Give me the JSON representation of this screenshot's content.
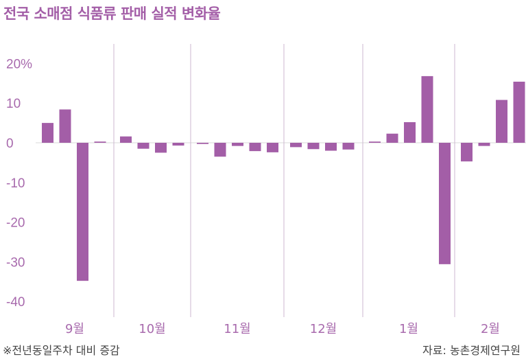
{
  "title": "전국 소매점 식품류 판매 실적 변화율",
  "footnote": "※전년동일주차 대비 증감",
  "source": "자료: 농촌경제연구원",
  "colors": {
    "bar": "#a35ea7",
    "tick_text": "#a86aad",
    "grid": "#cdb7d0",
    "zero": "#d9d9d9"
  },
  "chart_data": {
    "type": "bar",
    "title": "전국 소매점 식품류 판매 실적 변화율",
    "y_unit": "%",
    "ylim": [
      -42,
      24
    ],
    "y_ticks": [
      {
        "value": 20,
        "label": "20%"
      },
      {
        "value": 10,
        "label": "10"
      },
      {
        "value": 0,
        "label": "0"
      },
      {
        "value": -10,
        "label": "-10"
      },
      {
        "value": -20,
        "label": "-20"
      },
      {
        "value": -30,
        "label": "-30"
      },
      {
        "value": -40,
        "label": "-40"
      }
    ],
    "grid": "vertical month separators",
    "groups": [
      {
        "label": "9월",
        "values": [
          5.0,
          8.4,
          -34.8,
          0.3
        ]
      },
      {
        "label": "10월",
        "values": [
          1.6,
          -1.5,
          -2.5,
          -0.7
        ]
      },
      {
        "label": "11월",
        "values": [
          -0.3,
          -3.5,
          -0.8,
          -2.1,
          -2.4
        ]
      },
      {
        "label": "12월",
        "values": [
          -1.1,
          -1.6,
          -2.0,
          -1.7
        ]
      },
      {
        "label": "1월",
        "values": [
          0.3,
          2.3,
          5.2,
          16.8,
          -30.6
        ]
      },
      {
        "label": "2월",
        "values": [
          -4.7,
          -0.8,
          10.8,
          15.4
        ]
      }
    ]
  }
}
